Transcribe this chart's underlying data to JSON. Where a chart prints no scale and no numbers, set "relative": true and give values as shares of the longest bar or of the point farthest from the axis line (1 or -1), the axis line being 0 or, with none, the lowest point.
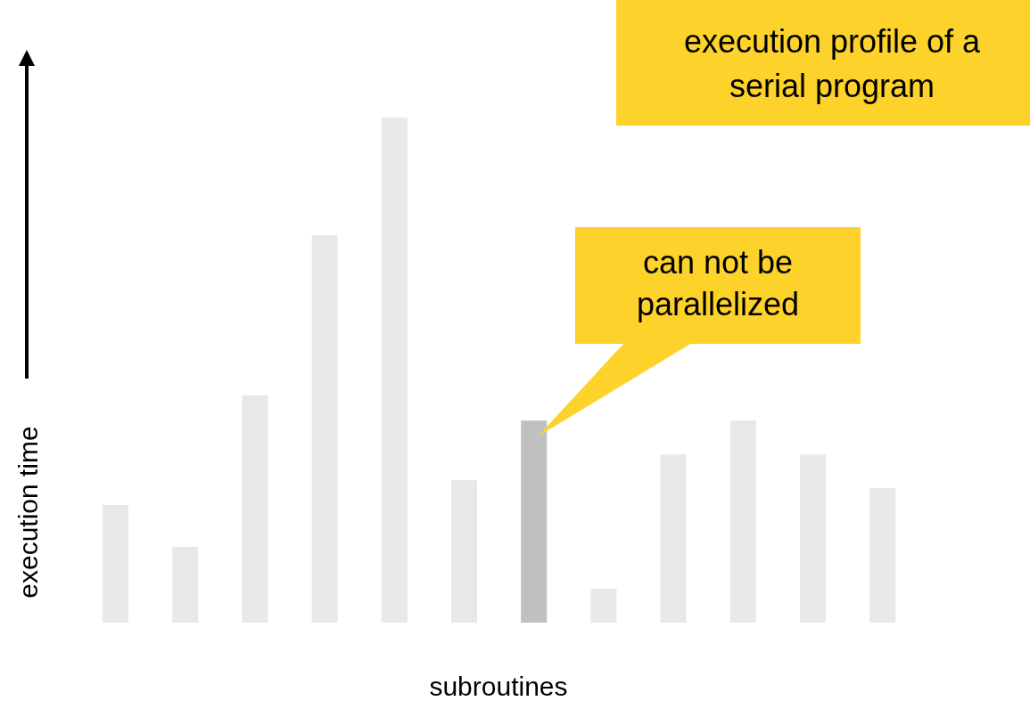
{
  "chart_data": {
    "type": "bar",
    "relative": true,
    "title": "execution profile of a serial program",
    "xlabel": "subroutines",
    "ylabel": "execution time",
    "categories": [
      null,
      null,
      null,
      null,
      null,
      null,
      null,
      null,
      null,
      null,
      null,
      null
    ],
    "values": [
      0.233,
      0.15,
      0.45,
      0.767,
      1,
      0.282,
      0.4,
      0.067,
      0.333,
      0.4,
      0.333,
      0.266
    ],
    "colors": [
      "#e8e8e8",
      "#e8e8e8",
      "#e8e8e8",
      "#e8e8e8",
      "#e8e8e8",
      "#e8e8e8",
      "#c0c0c0",
      "#e8e8e8",
      "#e8e8e8",
      "#e8e8e8",
      "#e8e8e8",
      "#e8e8e8"
    ],
    "annotations": [
      "can not be parallelized"
    ]
  }
}
